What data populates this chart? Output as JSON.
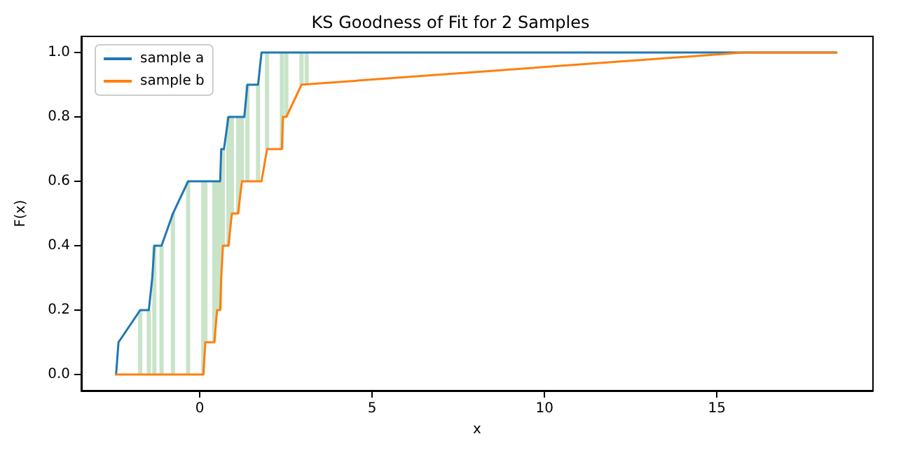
{
  "chart_data": {
    "type": "line",
    "title": "KS Goodness of Fit for 2 Samples",
    "xlabel": "x",
    "ylabel": "F(x)",
    "xlim": [
      -3.44,
      19.53
    ],
    "xticks": [
      0,
      5,
      10,
      15
    ],
    "ylim": [
      -0.05,
      1.05
    ],
    "yticks": [
      {
        "value": 0,
        "label": "0.0"
      },
      {
        "value": 0.2,
        "label": "0.2"
      },
      {
        "value": 0.4,
        "label": "0.4"
      },
      {
        "value": 0.6,
        "label": "0.6"
      },
      {
        "value": 0.8,
        "label": "0.8"
      },
      {
        "value": 1,
        "label": "1.0"
      }
    ],
    "grid": false,
    "legend": "top left",
    "series": [
      {
        "type": "bar",
        "color": "#c9e4c9",
        "x": [
          -1.73,
          -1.48,
          -1.32,
          -1.11,
          -0.78,
          -0.34,
          0.1,
          0.16,
          0.42,
          0.5,
          0.59,
          0.67,
          0.83,
          0.93,
          1.11,
          1.22,
          1.38,
          1.69,
          1.95,
          2.38,
          2.51,
          2.95,
          3.1
        ],
        "base": [
          0,
          0,
          0,
          0,
          0,
          0,
          0,
          0.1,
          0.1,
          0.2,
          0.2,
          0.4,
          0.4,
          0.5,
          0.5,
          0.6,
          0.6,
          0.6,
          0.7,
          0.7,
          0.8,
          0.9,
          0.9
        ],
        "values": [
          0.2,
          0.2,
          0.4,
          0.4,
          0.5,
          0.6,
          0.6,
          0.5,
          0.5,
          0.4,
          0.4,
          0.3,
          0.4,
          0.3,
          0.3,
          0.2,
          0.3,
          0.3,
          0.3,
          0.3,
          0.2,
          0.1,
          0.1
        ]
      },
      {
        "name": "sample a",
        "color": "#1f77b4",
        "x": [
          -2.43,
          -2.36,
          -1.73,
          -1.48,
          -1.38,
          -1.32,
          -1.11,
          -0.78,
          -0.34,
          0.59,
          0.62,
          0.7,
          0.83,
          1.29,
          1.38,
          1.69,
          1.79,
          18.47
        ],
        "values": [
          0,
          0.1,
          0.2,
          0.2,
          0.3,
          0.4,
          0.4,
          0.5,
          0.6,
          0.6,
          0.7,
          0.7,
          0.8,
          0.8,
          0.9,
          0.9,
          1,
          1
        ]
      },
      {
        "name": "sample b",
        "color": "#ff7f0e",
        "x": [
          -2.43,
          0.1,
          0.16,
          0.42,
          0.5,
          0.59,
          0.62,
          0.67,
          0.83,
          0.93,
          1.11,
          1.22,
          1.79,
          1.95,
          2.38,
          2.41,
          2.51,
          2.95,
          15.78,
          18.47
        ],
        "values": [
          0,
          0,
          0.1,
          0.1,
          0.2,
          0.2,
          0.3,
          0.4,
          0.4,
          0.5,
          0.5,
          0.6,
          0.6,
          0.7,
          0.7,
          0.8,
          0.8,
          0.9,
          1,
          1
        ]
      }
    ]
  }
}
